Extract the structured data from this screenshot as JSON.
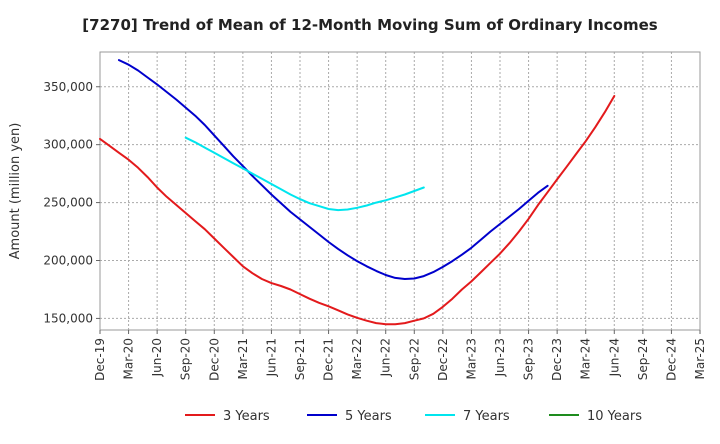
{
  "chart_data": {
    "type": "line",
    "title": "[7270]  Trend of Mean of 12-Month Moving Sum of Ordinary Incomes",
    "ylabel": "Amount (million yen)",
    "xlabel": "",
    "ylim": [
      140000,
      380000
    ],
    "yticks": [
      150000,
      200000,
      250000,
      300000,
      350000
    ],
    "ytick_labels": [
      "150,000",
      "200,000",
      "250,000",
      "300,000",
      "350,000"
    ],
    "grid": true,
    "legend_position": "bottom",
    "x_tick_labels": [
      "Dec-19",
      "Mar-20",
      "Jun-20",
      "Sep-20",
      "Dec-20",
      "Mar-21",
      "Jun-21",
      "Sep-21",
      "Dec-21",
      "Mar-22",
      "Jun-22",
      "Sep-22",
      "Dec-22",
      "Mar-23",
      "Jun-23",
      "Sep-23",
      "Dec-23",
      "Mar-24",
      "Jun-24",
      "Sep-24",
      "Dec-24",
      "Mar-25"
    ],
    "series": [
      {
        "name": "3 Years",
        "color": "#e31a1c",
        "start_index": 0,
        "values": [
          305000,
          299000,
          293000,
          287000,
          280000,
          272000,
          263000,
          255000,
          248000,
          241000,
          234000,
          227000,
          219000,
          211000,
          203000,
          195000,
          189000,
          184000,
          180500,
          178000,
          175000,
          171000,
          167000,
          163500,
          160500,
          157000,
          153500,
          150500,
          148000,
          146000,
          145000,
          145000,
          146000,
          148000,
          150000,
          154000,
          160000,
          167000,
          175000,
          182000,
          190000,
          198000,
          206000,
          215000,
          225000,
          236000,
          248000,
          259000,
          270000,
          281000,
          292000,
          303000,
          315000,
          328000,
          342000
        ]
      },
      {
        "name": "5 Years",
        "color": "#0000cc",
        "start_index": 2,
        "values": [
          373000,
          369000,
          364000,
          358000,
          352000,
          345500,
          339000,
          332000,
          325000,
          317000,
          308000,
          299000,
          290000,
          281500,
          273000,
          265000,
          257000,
          249500,
          242000,
          235500,
          229000,
          222500,
          216000,
          210000,
          204500,
          199500,
          195000,
          191000,
          187500,
          185000,
          184000,
          184500,
          186500,
          190000,
          194500,
          199500,
          205000,
          211000,
          218000,
          225000,
          231500,
          238000,
          244500,
          251500,
          258500,
          264500
        ]
      },
      {
        "name": "7 Years",
        "color": "#00e5ee",
        "start_index": 9,
        "values": [
          306000,
          302000,
          297500,
          293000,
          288500,
          284000,
          279500,
          275000,
          270500,
          266000,
          261500,
          257000,
          253000,
          249500,
          247000,
          244500,
          243500,
          244000,
          245500,
          247500,
          250000,
          252000,
          254500,
          257000,
          260000,
          263000
        ]
      },
      {
        "name": "10 Years",
        "color": "#1e8c1e",
        "start_index": 0,
        "values": []
      }
    ]
  }
}
